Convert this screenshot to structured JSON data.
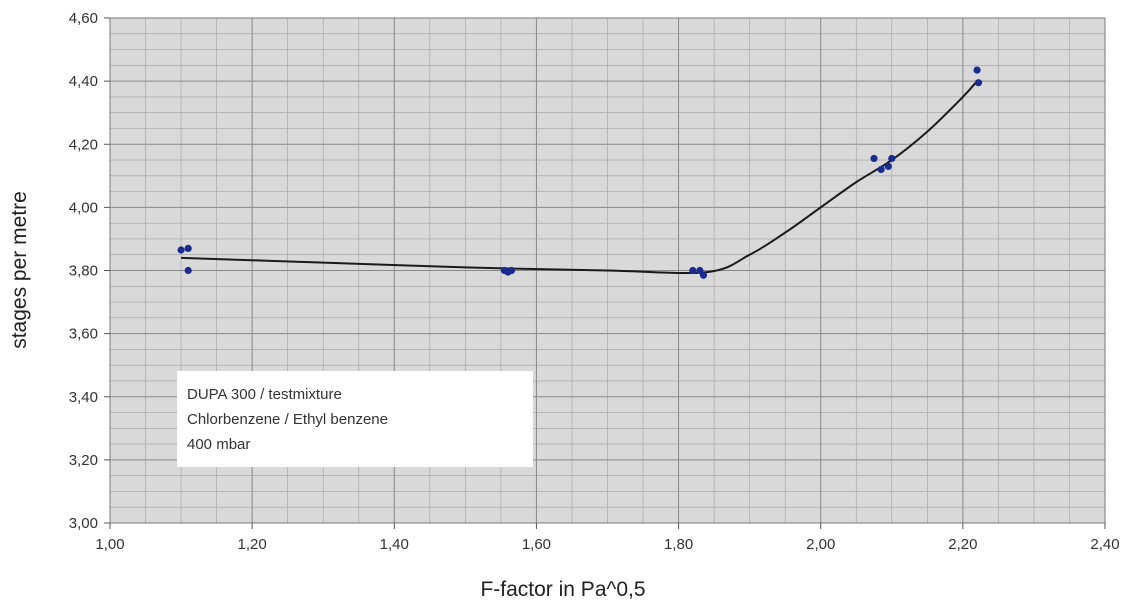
{
  "chart_data": {
    "type": "scatter",
    "xlabel": "F-factor in Pa^0,5",
    "ylabel": "stages per metre",
    "xlim": [
      1.0,
      2.4
    ],
    "ylim": [
      3.0,
      4.6
    ],
    "x_major_step": 0.2,
    "y_major_step": 0.2,
    "x_minor_step": 0.05,
    "y_minor_step": 0.05,
    "x_tick_labels": [
      "1,00",
      "1,20",
      "1,40",
      "1,60",
      "1,80",
      "2,00",
      "2,20",
      "2,40"
    ],
    "y_tick_labels": [
      "3,00",
      "3,20",
      "3,40",
      "3,60",
      "3,80",
      "4,00",
      "4,20",
      "4,40",
      "4,60"
    ],
    "grid": true,
    "plot_background": "#d9d9d9",
    "grid_color": "#a0a0a0",
    "marker_color": "#1a2a8f",
    "line_color": "#1a1a1a",
    "points": [
      {
        "x": 1.1,
        "y": 3.865
      },
      {
        "x": 1.11,
        "y": 3.87
      },
      {
        "x": 1.11,
        "y": 3.8
      },
      {
        "x": 1.555,
        "y": 3.8
      },
      {
        "x": 1.56,
        "y": 3.795
      },
      {
        "x": 1.565,
        "y": 3.8
      },
      {
        "x": 1.82,
        "y": 3.8
      },
      {
        "x": 1.83,
        "y": 3.8
      },
      {
        "x": 1.835,
        "y": 3.785
      },
      {
        "x": 2.075,
        "y": 4.155
      },
      {
        "x": 2.085,
        "y": 4.12
      },
      {
        "x": 2.095,
        "y": 4.13
      },
      {
        "x": 2.1,
        "y": 4.155
      },
      {
        "x": 2.22,
        "y": 4.435
      },
      {
        "x": 2.222,
        "y": 4.395
      }
    ],
    "fit_line": [
      {
        "x": 1.1,
        "y": 3.84
      },
      {
        "x": 1.3,
        "y": 3.825
      },
      {
        "x": 1.5,
        "y": 3.81
      },
      {
        "x": 1.7,
        "y": 3.8
      },
      {
        "x": 1.84,
        "y": 3.795
      },
      {
        "x": 1.9,
        "y": 3.85
      },
      {
        "x": 1.95,
        "y": 3.92
      },
      {
        "x": 2.0,
        "y": 4.0
      },
      {
        "x": 2.05,
        "y": 4.08
      },
      {
        "x": 2.1,
        "y": 4.15
      },
      {
        "x": 2.15,
        "y": 4.24
      },
      {
        "x": 2.2,
        "y": 4.35
      },
      {
        "x": 2.22,
        "y": 4.4
      }
    ],
    "annotation_lines": [
      "DUPA 300  / testmixture",
      "Chlorbenzene / Ethyl benzene",
      "400 mbar"
    ]
  }
}
